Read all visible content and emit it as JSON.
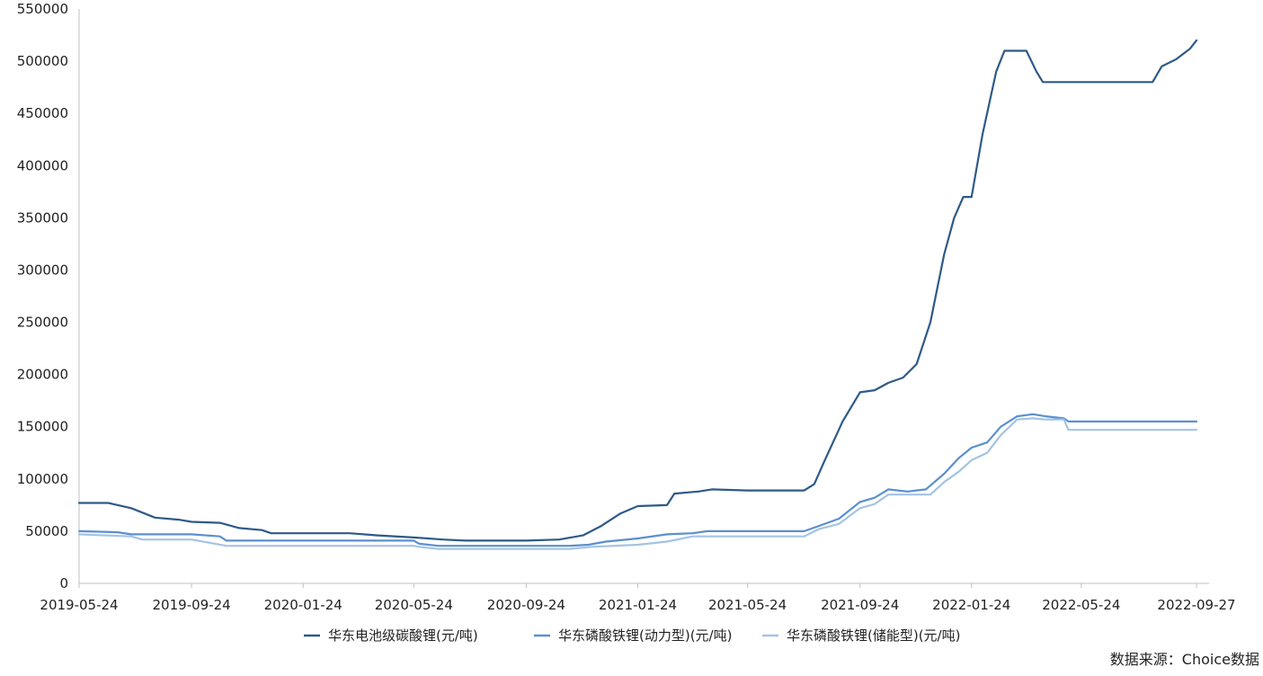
{
  "source_text": "数据来源：Choice数据",
  "chart_data": {
    "type": "line",
    "x_axis": {
      "type": "date",
      "range": [
        "2019-05-24",
        "2022-09-27"
      ],
      "ticks": [
        "2019-05-24",
        "2019-09-24",
        "2020-01-24",
        "2020-05-24",
        "2020-09-24",
        "2021-01-24",
        "2021-05-24",
        "2021-09-24",
        "2022-01-24",
        "2022-05-24",
        "2022-09-27"
      ]
    },
    "y_axis": {
      "range": [
        0,
        550000
      ],
      "ticks": [
        "0",
        "50000",
        "100000",
        "150000",
        "200000",
        "250000",
        "300000",
        "350000",
        "400000",
        "450000",
        "500000",
        "550000"
      ]
    },
    "grid": false,
    "legend_position": "bottom",
    "series": [
      {
        "name": "华东电池级碳酸锂(元/吨)",
        "color": "#2e5a87",
        "points": [
          [
            "2019-05-24",
            77000
          ],
          [
            "2019-06-25",
            77000
          ],
          [
            "2019-07-20",
            72000
          ],
          [
            "2019-08-15",
            63000
          ],
          [
            "2019-09-10",
            61000
          ],
          [
            "2019-09-24",
            59000
          ],
          [
            "2019-10-25",
            58000
          ],
          [
            "2019-11-15",
            53000
          ],
          [
            "2019-12-10",
            51000
          ],
          [
            "2019-12-20",
            48000
          ],
          [
            "2020-01-24",
            48000
          ],
          [
            "2020-03-15",
            48000
          ],
          [
            "2020-04-15",
            46000
          ],
          [
            "2020-05-24",
            44000
          ],
          [
            "2020-06-25",
            42000
          ],
          [
            "2020-07-20",
            41000
          ],
          [
            "2020-09-24",
            41000
          ],
          [
            "2020-10-30",
            42000
          ],
          [
            "2020-11-25",
            46000
          ],
          [
            "2020-12-15",
            55000
          ],
          [
            "2021-01-05",
            67000
          ],
          [
            "2021-01-24",
            74000
          ],
          [
            "2021-02-25",
            75000
          ],
          [
            "2021-03-05",
            86000
          ],
          [
            "2021-03-31",
            88000
          ],
          [
            "2021-04-15",
            90000
          ],
          [
            "2021-05-24",
            89000
          ],
          [
            "2021-07-10",
            89000
          ],
          [
            "2021-07-25",
            89000
          ],
          [
            "2021-08-05",
            95000
          ],
          [
            "2021-08-15",
            115000
          ],
          [
            "2021-09-05",
            155000
          ],
          [
            "2021-09-24",
            183000
          ],
          [
            "2021-10-10",
            185000
          ],
          [
            "2021-10-25",
            192000
          ],
          [
            "2021-11-10",
            197000
          ],
          [
            "2021-11-25",
            210000
          ],
          [
            "2021-12-10",
            250000
          ],
          [
            "2021-12-25",
            315000
          ],
          [
            "2022-01-05",
            350000
          ],
          [
            "2022-01-15",
            370000
          ],
          [
            "2022-01-24",
            370000
          ],
          [
            "2022-02-05",
            430000
          ],
          [
            "2022-02-20",
            490000
          ],
          [
            "2022-03-01",
            510000
          ],
          [
            "2022-03-25",
            510000
          ],
          [
            "2022-04-05",
            490000
          ],
          [
            "2022-04-12",
            480000
          ],
          [
            "2022-05-24",
            480000
          ],
          [
            "2022-08-10",
            480000
          ],
          [
            "2022-08-20",
            495000
          ],
          [
            "2022-09-05",
            502000
          ],
          [
            "2022-09-20",
            512000
          ],
          [
            "2022-09-27",
            520000
          ]
        ]
      },
      {
        "name": "华东磷酸铁锂(动力型)(元/吨)",
        "color": "#5b8fcf",
        "points": [
          [
            "2019-05-24",
            50000
          ],
          [
            "2019-07-05",
            49000
          ],
          [
            "2019-07-20",
            47000
          ],
          [
            "2019-09-24",
            47000
          ],
          [
            "2019-10-25",
            45000
          ],
          [
            "2019-11-01",
            41000
          ],
          [
            "2020-05-24",
            41000
          ],
          [
            "2020-05-30",
            38000
          ],
          [
            "2020-06-20",
            36000
          ],
          [
            "2020-09-24",
            36000
          ],
          [
            "2020-11-10",
            36000
          ],
          [
            "2020-12-01",
            37000
          ],
          [
            "2020-12-20",
            40000
          ],
          [
            "2021-01-24",
            43000
          ],
          [
            "2021-02-25",
            47000
          ],
          [
            "2021-03-25",
            48000
          ],
          [
            "2021-04-10",
            50000
          ],
          [
            "2021-05-24",
            50000
          ],
          [
            "2021-07-25",
            50000
          ],
          [
            "2021-08-10",
            55000
          ],
          [
            "2021-09-01",
            62000
          ],
          [
            "2021-09-24",
            78000
          ],
          [
            "2021-10-10",
            82000
          ],
          [
            "2021-10-25",
            90000
          ],
          [
            "2021-11-15",
            88000
          ],
          [
            "2021-12-05",
            90000
          ],
          [
            "2021-12-25",
            105000
          ],
          [
            "2022-01-10",
            120000
          ],
          [
            "2022-01-24",
            130000
          ],
          [
            "2022-02-10",
            135000
          ],
          [
            "2022-02-25",
            150000
          ],
          [
            "2022-03-15",
            160000
          ],
          [
            "2022-04-01",
            162000
          ],
          [
            "2022-04-15",
            160000
          ],
          [
            "2022-05-05",
            158000
          ],
          [
            "2022-05-10",
            155000
          ],
          [
            "2022-09-27",
            155000
          ]
        ]
      },
      {
        "name": "华东磷酸铁锂(储能型)(元/吨)",
        "color": "#a4c3e4",
        "points": [
          [
            "2019-05-24",
            47000
          ],
          [
            "2019-07-20",
            45000
          ],
          [
            "2019-08-01",
            42000
          ],
          [
            "2019-09-24",
            42000
          ],
          [
            "2019-11-01",
            36000
          ],
          [
            "2020-05-24",
            36000
          ],
          [
            "2020-05-30",
            35000
          ],
          [
            "2020-06-20",
            33000
          ],
          [
            "2020-09-24",
            33000
          ],
          [
            "2020-11-10",
            33000
          ],
          [
            "2020-12-05",
            35000
          ],
          [
            "2021-01-24",
            37000
          ],
          [
            "2021-02-25",
            40000
          ],
          [
            "2021-03-25",
            45000
          ],
          [
            "2021-05-24",
            45000
          ],
          [
            "2021-07-25",
            45000
          ],
          [
            "2021-08-10",
            52000
          ],
          [
            "2021-09-01",
            57000
          ],
          [
            "2021-09-24",
            72000
          ],
          [
            "2021-10-10",
            76000
          ],
          [
            "2021-10-25",
            85000
          ],
          [
            "2021-12-10",
            85000
          ],
          [
            "2021-12-25",
            97000
          ],
          [
            "2022-01-10",
            107000
          ],
          [
            "2022-01-24",
            118000
          ],
          [
            "2022-02-10",
            125000
          ],
          [
            "2022-02-25",
            142000
          ],
          [
            "2022-03-15",
            157000
          ],
          [
            "2022-04-01",
            158000
          ],
          [
            "2022-04-15",
            157000
          ],
          [
            "2022-05-05",
            157000
          ],
          [
            "2022-05-10",
            147000
          ],
          [
            "2022-09-27",
            147000
          ]
        ]
      }
    ]
  }
}
